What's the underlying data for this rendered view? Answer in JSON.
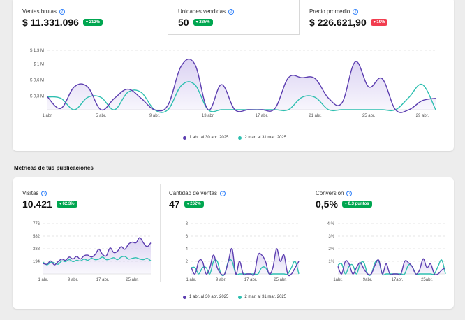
{
  "kpis": [
    {
      "label": "Ventas brutas",
      "value": "$ 11.331.096",
      "badge": "▾ 212%",
      "trend": "up"
    },
    {
      "label": "Unidades vendidas",
      "value": "50",
      "badge": "▾ 285%",
      "trend": "up"
    },
    {
      "label": "Precio promedio",
      "value": "$ 226.621,90",
      "badge": "▾ 19%",
      "trend": "down"
    }
  ],
  "colors": {
    "current": "#5c3eb0",
    "previous": "#2ebfb0",
    "current_fill": "#d9d0f2",
    "up": "#00a650",
    "down": "#f23d4f",
    "info": "#3483fa"
  },
  "legend": {
    "current": "1 abr. al 30 abr. 2025",
    "previous": "2 mar. al 31 mar. 2025"
  },
  "main_chart": {
    "type": "area",
    "y_ticks": [
      "$ 1,3 M",
      "$ 1 M",
      "$ 0,6 M",
      "$ 0,3 M"
    ],
    "y_tick_values": [
      1.3,
      1.0,
      0.65,
      0.3
    ],
    "ylim": [
      0,
      1.3
    ],
    "x_labels": [
      "1 abr.",
      "5 abr.",
      "9 abr.",
      "13 abr.",
      "17 abr.",
      "21 abr.",
      "25 abr.",
      "29 abr."
    ],
    "x_label_days": [
      1,
      5,
      9,
      13,
      17,
      21,
      25,
      29
    ],
    "x": [
      1,
      2,
      3,
      4,
      5,
      6,
      7,
      8,
      9,
      10,
      11,
      12,
      13,
      14,
      15,
      16,
      17,
      18,
      19,
      20,
      21,
      22,
      23,
      24,
      25,
      26,
      27,
      28,
      29,
      30
    ],
    "series": [
      {
        "name": "1 abr. al 30 abr. 2025",
        "values": [
          0.28,
          0.03,
          0.5,
          0.5,
          0.0,
          0.25,
          0.45,
          0.25,
          0.0,
          0.1,
          0.96,
          1.0,
          0.0,
          0.55,
          0.0,
          0.0,
          0.0,
          0.03,
          0.7,
          0.7,
          0.68,
          0.25,
          0.15,
          1.05,
          0.5,
          0.68,
          0.0,
          0.0,
          0.2,
          0.25
        ]
      },
      {
        "name": "2 mar. al 31 mar. 2025",
        "values": [
          0.28,
          0.25,
          0.0,
          0.27,
          0.27,
          0.0,
          0.38,
          0.38,
          0.0,
          0.0,
          0.53,
          0.55,
          0.0,
          0.0,
          0.0,
          0.0,
          0.0,
          0.0,
          0.0,
          0.27,
          0.27,
          0.0,
          0.0,
          0.0,
          0.0,
          0.0,
          0.0,
          0.27,
          0.55,
          0.0
        ]
      }
    ]
  },
  "section_title": "Métricas de tus publicaciones",
  "metrics": [
    {
      "label": "Visitas",
      "value": "10.421",
      "badge": "▾ 62,3%",
      "trend": "up",
      "chart": {
        "type": "area",
        "y_ticks": [
          "776",
          "582",
          "388",
          "194"
        ],
        "y_tick_values": [
          776,
          582,
          388,
          194
        ],
        "ylim": [
          0,
          776
        ],
        "x_labels": [
          "1 abr.",
          "9 abr.",
          "17 abr.",
          "25 abr."
        ],
        "x_label_days": [
          1,
          9,
          17,
          25
        ],
        "series": [
          {
            "values": [
              160,
              150,
              200,
              140,
              190,
              230,
              210,
              260,
              230,
              270,
              230,
              280,
              290,
              260,
              300,
              380,
              300,
              280,
              400,
              330,
              350,
              420,
              380,
              460,
              490,
              480,
              560,
              480,
              420,
              480
            ]
          },
          {
            "values": [
              180,
              140,
              180,
              170,
              150,
              200,
              190,
              220,
              190,
              210,
              200,
              230,
              210,
              240,
              220,
              230,
              260,
              220,
              230,
              250,
              220,
              260,
              270,
              230,
              240,
              250,
              230,
              220,
              240,
              200
            ]
          }
        ]
      }
    },
    {
      "label": "Cantidad de ventas",
      "value": "47",
      "badge": "▾ 262%",
      "trend": "up",
      "chart": {
        "type": "line",
        "y_ticks": [
          "8",
          "6",
          "4",
          "2"
        ],
        "y_tick_values": [
          8,
          6,
          4,
          2
        ],
        "ylim": [
          0,
          8
        ],
        "x_labels": [
          "1 abr.",
          "9 abr.",
          "17 abr.",
          "25 abr."
        ],
        "x_label_days": [
          1,
          9,
          17,
          25
        ],
        "series": [
          {
            "values": [
              1,
              0,
              2,
              2,
              0,
              1,
              3,
              1,
              0,
              0,
              2,
              4,
              0,
              2,
              0,
              0,
              0,
              0,
              3,
              3,
              2,
              0,
              1,
              4,
              2,
              3,
              0,
              0,
              1,
              2
            ]
          },
          {
            "values": [
              1,
              1,
              0,
              1,
              1,
              0,
              2,
              2,
              0,
              0,
              2,
              2,
              0,
              0,
              0,
              0,
              0,
              0,
              0,
              1,
              1,
              0,
              0,
              0,
              0,
              0,
              0,
              1,
              2,
              0
            ]
          }
        ]
      }
    },
    {
      "label": "Conversión",
      "value": "0,5%",
      "badge": "▾ 0,3 puntos",
      "trend": "up",
      "chart": {
        "type": "line",
        "y_ticks": [
          "4 %",
          "3%",
          "2%",
          "1%"
        ],
        "y_tick_values": [
          4,
          3,
          2,
          1
        ],
        "ylim": [
          0,
          4
        ],
        "x_labels": [
          "1abr.",
          "9abr.",
          "17abr.",
          "25abr."
        ],
        "x_label_days": [
          1,
          9,
          17,
          25
        ],
        "series": [
          {
            "values": [
              0.6,
              0,
              1,
              0.8,
              0,
              0.5,
              0.9,
              0.4,
              0,
              0,
              0.7,
              1.1,
              0,
              0.8,
              0,
              0,
              0,
              0,
              1,
              0.9,
              0.6,
              0,
              0.3,
              1.2,
              0.5,
              0.8,
              0,
              0,
              0.3,
              0.5
            ]
          },
          {
            "values": [
              0.7,
              0.8,
              0,
              0.6,
              0.7,
              0,
              0.8,
              0.9,
              0,
              0,
              0.9,
              1,
              0,
              0,
              0,
              0,
              0,
              0,
              0,
              0.7,
              0.6,
              0,
              0,
              0,
              0,
              0,
              0,
              0.6,
              1.1,
              0
            ]
          }
        ]
      }
    }
  ]
}
